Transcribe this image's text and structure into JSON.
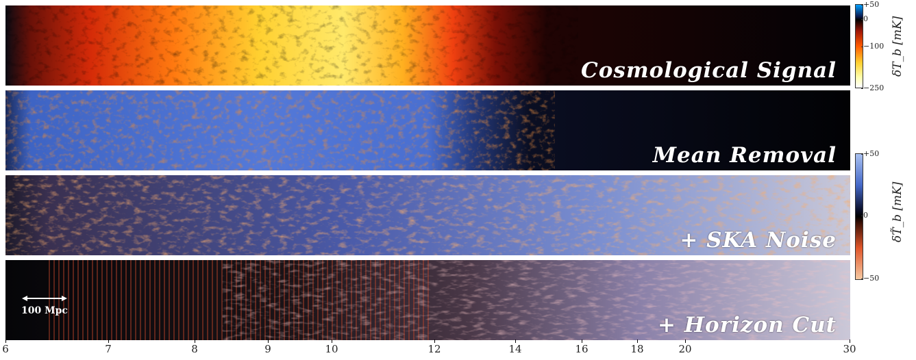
{
  "panels": [
    {
      "name": "cosmological-signal",
      "label": "Cosmological Signal"
    },
    {
      "name": "mean-removal",
      "label": "Mean Removal"
    },
    {
      "name": "ska-noise",
      "label": "+ SKA Noise"
    },
    {
      "name": "horizon-cut",
      "label": "+ Horizon Cut"
    }
  ],
  "scale_bar": {
    "label": "100 Mpc"
  },
  "x_axis": {
    "ticks": [
      "6",
      "7",
      "8",
      "9",
      "10",
      "12",
      "14",
      "16",
      "18",
      "20",
      "30"
    ]
  },
  "colorbar_top": {
    "title": "δT_b [mK]",
    "ticks": [
      "+50",
      "0",
      "−100",
      "−250"
    ],
    "colors": {
      "high": "#00a0ff",
      "zero": "#000000",
      "mid": "#ff5a00",
      "low": "#ffffff"
    }
  },
  "colorbar_bottom": {
    "title": "δT̃_b [mK]",
    "ticks": [
      "+50",
      "0",
      "−50"
    ],
    "colors": {
      "high": "#a9c1f0",
      "zero": "#000000",
      "low": "#f5c9a2"
    }
  }
}
